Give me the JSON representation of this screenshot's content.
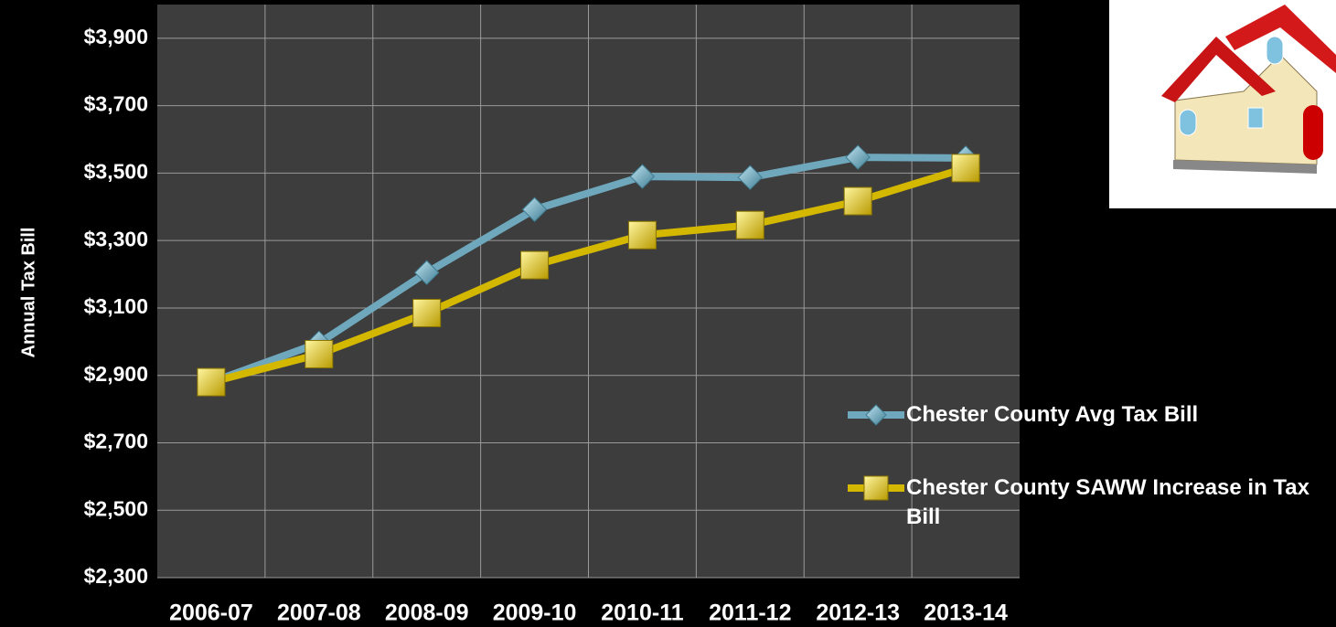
{
  "chart_data": {
    "type": "line",
    "y_axis_label": "Annual Tax Bill",
    "categories": [
      "2006-07",
      "2007-08",
      "2008-09",
      "2009-10",
      "2010-11",
      "2011-12",
      "2012-13",
      "2013-14"
    ],
    "series": [
      {
        "name": "Chester County Avg Tax Bill",
        "color": "#6fa8bd",
        "marker": "diamond",
        "values": [
          2880,
          2996,
          3205,
          3392,
          3490,
          3487,
          3547,
          3545
        ]
      },
      {
        "name": "Chester County SAWW Increase in Tax Bill",
        "color": "#d4b800",
        "marker": "square",
        "values": [
          2880,
          2963,
          3085,
          3227,
          3316,
          3346,
          3417,
          3515
        ]
      }
    ],
    "ylim": [
      2300,
      4000
    ],
    "yticks": [
      {
        "value": 2300,
        "label": "$2,300"
      },
      {
        "value": 2500,
        "label": "$2,500"
      },
      {
        "value": 2700,
        "label": "$2,700"
      },
      {
        "value": 2900,
        "label": "$2,900"
      },
      {
        "value": 3100,
        "label": "$3,100"
      },
      {
        "value": 3300,
        "label": "$3,300"
      },
      {
        "value": 3500,
        "label": "$3,500"
      },
      {
        "value": 3700,
        "label": "$3,700"
      },
      {
        "value": 3900,
        "label": "$3,900"
      }
    ],
    "grid": true
  }
}
